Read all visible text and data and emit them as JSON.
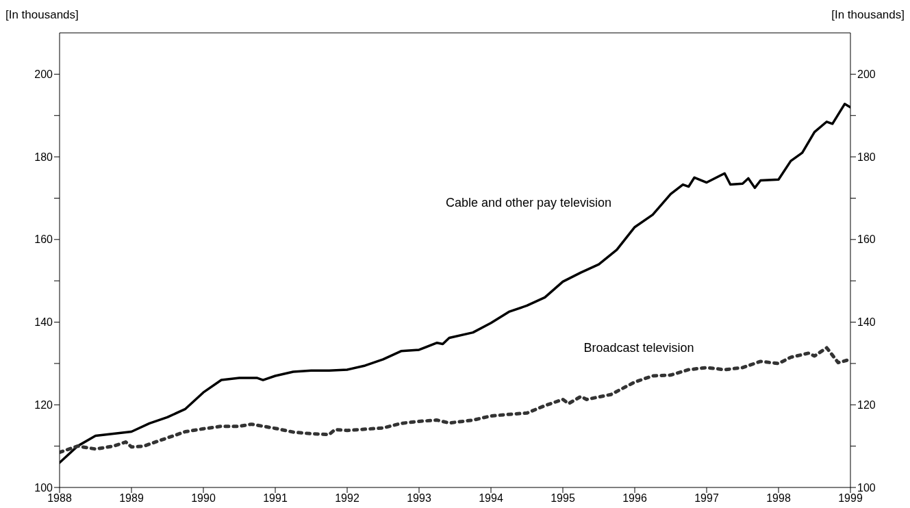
{
  "chart_data": {
    "type": "line",
    "ylabel": "[In thousands]",
    "y2label": "[In thousands]",
    "xlim": [
      1988,
      1999
    ],
    "xticks": [
      1988,
      1989,
      1990,
      1991,
      1992,
      1993,
      1994,
      1995,
      1996,
      1997,
      1998,
      1999
    ],
    "ylim": [
      100,
      210
    ],
    "yticks": [
      100,
      {
        "value": 110,
        "label": null
      },
      120,
      {
        "value": 130,
        "label": null
      },
      140,
      {
        "value": 150,
        "label": null
      },
      160,
      {
        "value": 170,
        "label": null
      },
      180,
      {
        "value": 190,
        "label": null
      },
      200
    ],
    "y2lim": [
      100,
      210
    ],
    "y2ticks": [
      100,
      {
        "value": 110,
        "label": null
      },
      120,
      {
        "value": 130,
        "label": null
      },
      140,
      {
        "value": 150,
        "label": null
      },
      160,
      {
        "value": 170,
        "label": null
      },
      180,
      {
        "value": 190,
        "label": null
      },
      200
    ],
    "grid": false,
    "legend": false,
    "marker": "none",
    "annotations": [
      "Cable and other pay television",
      "Broadcast television"
    ],
    "series": [
      {
        "color": "#000000",
        "line_style": "solid",
        "x": [
          1988,
          1988.25,
          1988.5,
          1988.75,
          1989,
          1989.25,
          1989.5,
          1989.75,
          1990,
          1990.25,
          1990.5,
          1990.75,
          1990.83,
          1991,
          1991.25,
          1991.5,
          1991.75,
          1992,
          1992.25,
          1992.5,
          1992.75,
          1993,
          1993.25,
          1993.33,
          1993.42,
          1993.75,
          1994,
          1994.25,
          1994.5,
          1994.75,
          1995,
          1995.25,
          1995.5,
          1995.75,
          1996,
          1996.25,
          1996.5,
          1996.67,
          1996.75,
          1996.83,
          1997,
          1997.25,
          1997.33,
          1997.5,
          1997.58,
          1997.67,
          1997.75,
          1998,
          1998.17,
          1998.33,
          1998.5,
          1998.67,
          1998.75,
          1998.92,
          1999
        ],
        "values": [
          106,
          110,
          112.5,
          113,
          113.5,
          115.5,
          117,
          119,
          123,
          126,
          126.5,
          126.5,
          126,
          127,
          128,
          128.3,
          128.3,
          128.5,
          129.5,
          131,
          133,
          133.3,
          135,
          134.7,
          136.2,
          137.5,
          139.8,
          142.5,
          144,
          146,
          149.8,
          152,
          154,
          157.5,
          163,
          166,
          171,
          173.3,
          172.8,
          175,
          173.8,
          176,
          173.3,
          173.5,
          174.8,
          172.5,
          174.3,
          174.5,
          179,
          181,
          186,
          188.5,
          188,
          192.8,
          192
        ]
      },
      {
        "color": "#333333",
        "line_style": "dotted",
        "x": [
          1988,
          1988.25,
          1988.5,
          1988.75,
          1988.92,
          1989,
          1989.17,
          1989.5,
          1989.75,
          1990,
          1990.25,
          1990.5,
          1990.67,
          1991,
          1991.25,
          1991.5,
          1991.75,
          1991.83,
          1992,
          1992.5,
          1992.75,
          1993,
          1993.25,
          1993.42,
          1993.75,
          1994,
          1994.25,
          1994.5,
          1994.75,
          1995,
          1995.08,
          1995.25,
          1995.33,
          1995.67,
          1996,
          1996.25,
          1996.5,
          1996.75,
          1997,
          1997.25,
          1997.5,
          1997.75,
          1998,
          1998.17,
          1998.42,
          1998.5,
          1998.67,
          1998.83,
          1999
        ],
        "values": [
          108.5,
          110,
          109.3,
          110,
          111,
          109.8,
          110,
          112,
          113.5,
          114.2,
          114.8,
          114.8,
          115.3,
          114.3,
          113.4,
          113,
          112.8,
          114,
          113.8,
          114.4,
          115.5,
          116,
          116.3,
          115.6,
          116.3,
          117.3,
          117.7,
          118,
          119.8,
          121.3,
          120.3,
          122,
          121.3,
          122.5,
          125.5,
          127,
          127.2,
          128.5,
          129,
          128.5,
          129,
          130.5,
          130,
          131.5,
          132.5,
          131.8,
          133.8,
          130.2,
          131
        ]
      }
    ]
  }
}
